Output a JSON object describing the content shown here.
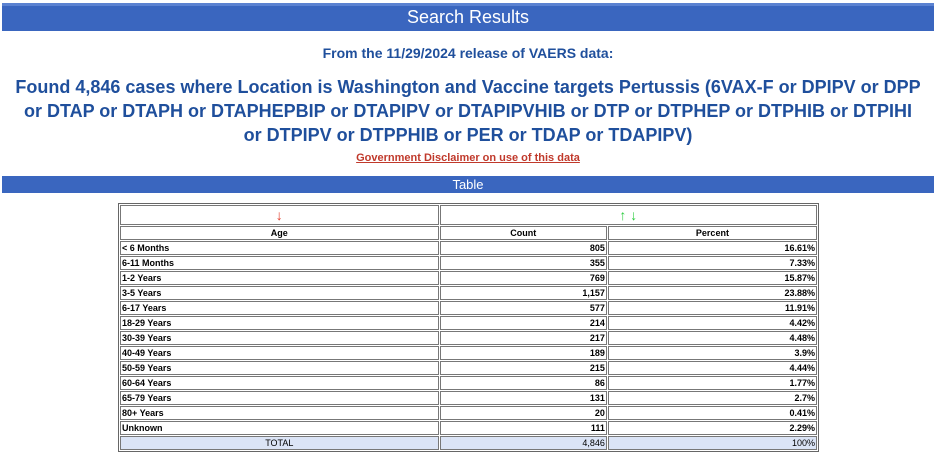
{
  "title": "Search Results",
  "release_line": "From the 11/29/2024 release of VAERS data:",
  "headline": {
    "line1": "Found 4,846 cases where Location is Washington and Vaccine targets Pertussis (6VAX-F or DPIPV or DPP",
    "line2": "or DTAP or DTAPH or DTAPHEPBIP or DTAPIPV or DTAPIPVHIB or DTP or DTPHEP or DTPHIB or DTPIHI",
    "line3": "or DTPIPV or DTPPHIB or PER or TDAP or TDAPIPV)"
  },
  "disclaimer": "Government Disclaimer on use of this data",
  "section_title": "Table",
  "sort_icons": {
    "age": "↓",
    "count_up": "↑",
    "count_down": "↓"
  },
  "columns": {
    "age": "Age",
    "count": "Count",
    "percent": "Percent"
  },
  "rows": [
    {
      "age": "< 6 Months",
      "count": "805",
      "percent": "16.61%"
    },
    {
      "age": "6-11 Months",
      "count": "355",
      "percent": "7.33%"
    },
    {
      "age": "1-2 Years",
      "count": "769",
      "percent": "15.87%"
    },
    {
      "age": "3-5 Years",
      "count": "1,157",
      "percent": "23.88%"
    },
    {
      "age": "6-17 Years",
      "count": "577",
      "percent": "11.91%"
    },
    {
      "age": "18-29 Years",
      "count": "214",
      "percent": "4.42%"
    },
    {
      "age": "30-39 Years",
      "count": "217",
      "percent": "4.48%"
    },
    {
      "age": "40-49 Years",
      "count": "189",
      "percent": "3.9%"
    },
    {
      "age": "50-59 Years",
      "count": "215",
      "percent": "4.44%"
    },
    {
      "age": "60-64 Years",
      "count": "86",
      "percent": "1.77%"
    },
    {
      "age": "65-79 Years",
      "count": "131",
      "percent": "2.7%"
    },
    {
      "age": "80+ Years",
      "count": "20",
      "percent": "0.41%"
    },
    {
      "age": "Unknown",
      "count": "111",
      "percent": "2.29%"
    }
  ],
  "total": {
    "label": "TOTAL",
    "count": "4,846",
    "percent": "100%"
  }
}
